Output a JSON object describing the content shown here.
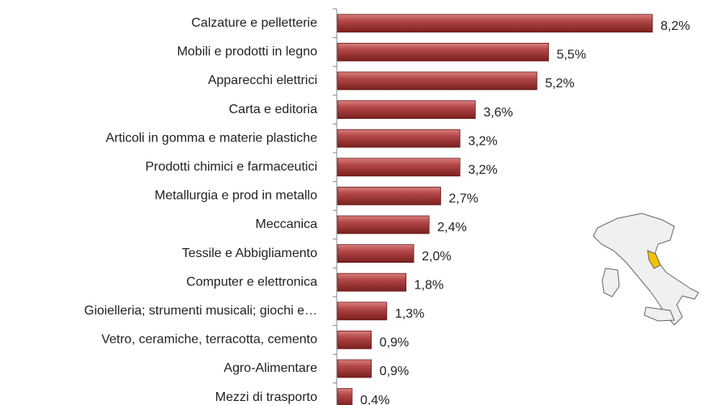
{
  "chart_data": {
    "type": "bar",
    "orientation": "horizontal",
    "categories": [
      "Calzature e pelletterie",
      "Mobili e prodotti in legno",
      "Apparecchi elettrici",
      "Carta e editoria",
      "Articoli in gomma e materie plastiche",
      "Prodotti chimici e farmaceutici",
      "Metallurgia e prod in metallo",
      "Meccanica",
      "Tessile e Abbigliamento",
      "Computer e elettronica",
      "Gioielleria; strumenti musicali; giochi e…",
      "Vetro, ceramiche, terracotta, cemento",
      "Agro-Alimentare",
      "Mezzi di trasporto"
    ],
    "values": [
      8.2,
      5.5,
      5.2,
      3.6,
      3.2,
      3.2,
      2.7,
      2.4,
      2.0,
      1.8,
      1.3,
      0.9,
      0.9,
      0.4
    ],
    "value_labels": [
      "8,2%",
      "5,5%",
      "5,2%",
      "3,6%",
      "3,2%",
      "3,2%",
      "2,7%",
      "2,4%",
      "2,0%",
      "1,8%",
      "1,3%",
      "0,9%",
      "0,9%",
      "0,4%"
    ],
    "color": "#a33a3a"
  }
}
